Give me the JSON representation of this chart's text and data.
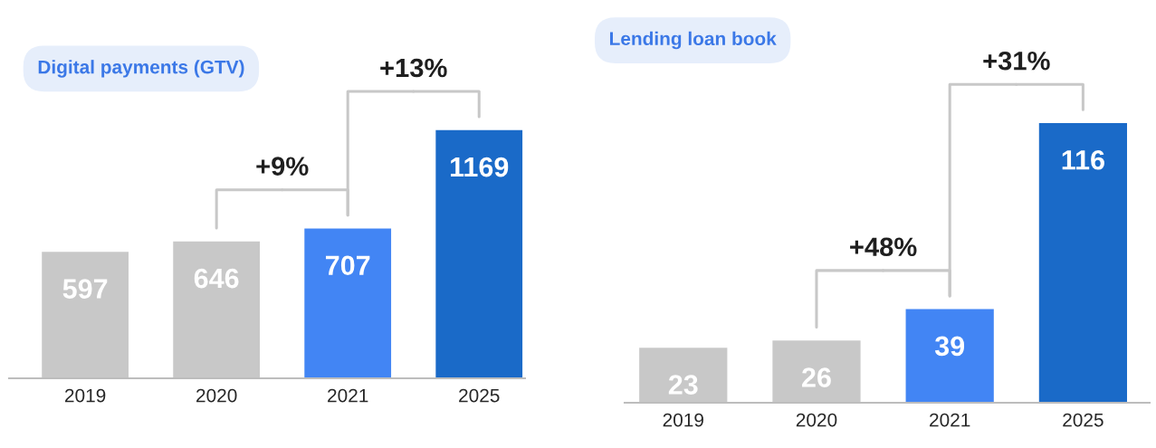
{
  "chart_data": [
    {
      "type": "bar",
      "title": "Digital payments (GTV)",
      "categories": [
        "2019",
        "2020",
        "2021",
        "2025"
      ],
      "values": [
        597,
        646,
        707,
        1169
      ],
      "colors": [
        "#c8c8c8",
        "#c8c8c8",
        "#4285f4",
        "#1a6ac8"
      ],
      "data_labels": true,
      "grid": false,
      "legend": false,
      "tick_labels": "x",
      "annotations": [
        "+9%",
        "+13%"
      ]
    },
    {
      "type": "bar",
      "title": "Lending loan book",
      "categories": [
        "2019",
        "2020",
        "2021",
        "2025"
      ],
      "values": [
        23,
        26,
        39,
        116
      ],
      "colors": [
        "#c8c8c8",
        "#c8c8c8",
        "#4285f4",
        "#1a6ac8"
      ],
      "data_labels": true,
      "grid": false,
      "legend": false,
      "tick_labels": "x",
      "annotations": [
        "+48%",
        "+31%"
      ]
    }
  ]
}
